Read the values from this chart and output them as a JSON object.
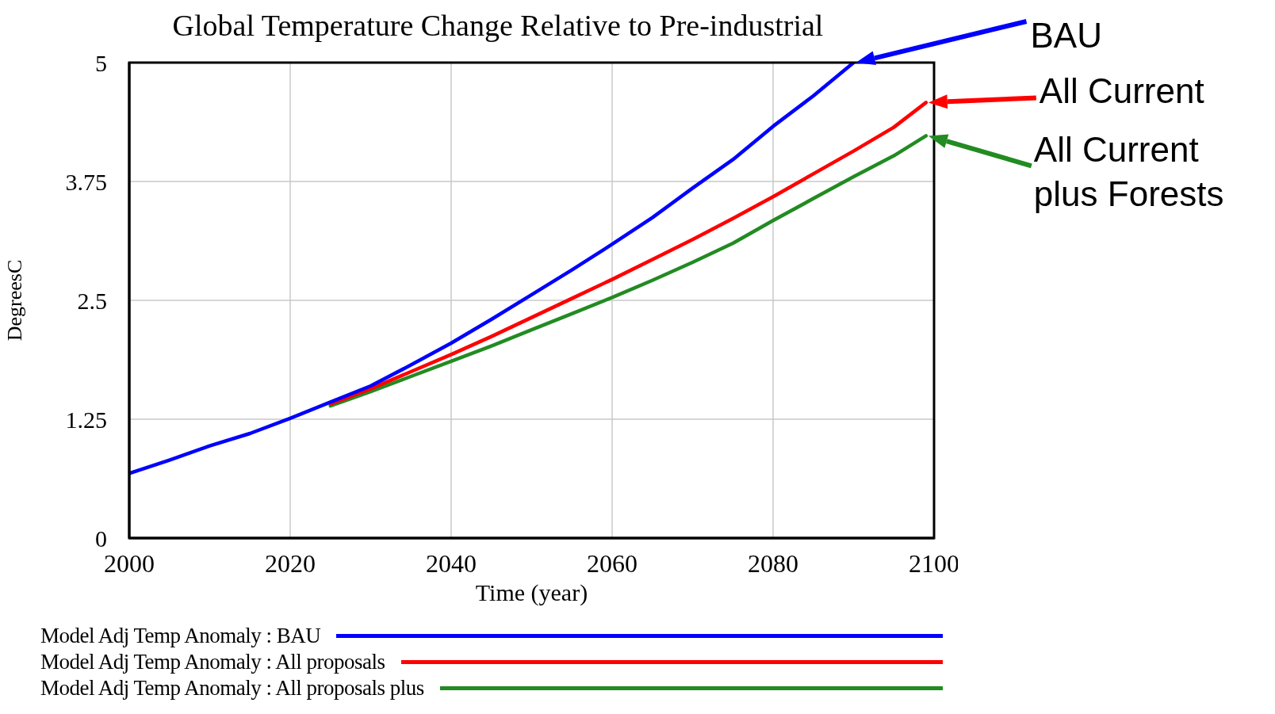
{
  "chart_data": {
    "type": "line",
    "title": "Global Temperature Change Relative to Pre-industrial",
    "xlabel": "Time (year)",
    "ylabel": "DegreesC",
    "xlim": [
      2000,
      2100
    ],
    "xticks": [
      2000,
      2020,
      2040,
      2060,
      2080,
      2100
    ],
    "ylim": [
      0,
      5
    ],
    "yticks": [
      0,
      1.25,
      2.5,
      3.75,
      5
    ],
    "grid": true,
    "legend": "bottom",
    "marker": "none",
    "line_style": "solid",
    "series": [
      {
        "name": "Model Adj Temp Anomaly : BAU",
        "color": "#0000ff",
        "x": [
          2000,
          2005,
          2010,
          2015,
          2020,
          2025,
          2030,
          2035,
          2040,
          2045,
          2050,
          2055,
          2060,
          2065,
          2070,
          2075,
          2080,
          2085,
          2090
        ],
        "values": [
          0.68,
          0.82,
          0.97,
          1.1,
          1.26,
          1.43,
          1.6,
          1.82,
          2.05,
          2.3,
          2.56,
          2.82,
          3.09,
          3.37,
          3.68,
          3.98,
          4.33,
          4.65,
          5.0
        ]
      },
      {
        "name": "Model Adj Temp Anomaly : All proposals",
        "color": "#ff0000",
        "x": [
          2025,
          2030,
          2035,
          2040,
          2045,
          2050,
          2055,
          2060,
          2065,
          2070,
          2075,
          2080,
          2085,
          2090,
          2095,
          2099
        ],
        "values": [
          1.41,
          1.57,
          1.75,
          1.93,
          2.12,
          2.32,
          2.52,
          2.72,
          2.93,
          3.14,
          3.36,
          3.59,
          3.83,
          4.07,
          4.32,
          4.58
        ]
      },
      {
        "name": "Model Adj Temp Anomaly : All proposals plus",
        "color": "#228b22",
        "x": [
          2025,
          2030,
          2035,
          2040,
          2045,
          2050,
          2055,
          2060,
          2065,
          2070,
          2075,
          2080,
          2085,
          2090,
          2095,
          2099
        ],
        "values": [
          1.39,
          1.54,
          1.7,
          1.86,
          2.02,
          2.19,
          2.36,
          2.53,
          2.71,
          2.9,
          3.1,
          3.34,
          3.57,
          3.8,
          4.02,
          4.23
        ]
      }
    ],
    "annotations": [
      "BAU",
      "All Current",
      "All Current plus Forests"
    ]
  }
}
